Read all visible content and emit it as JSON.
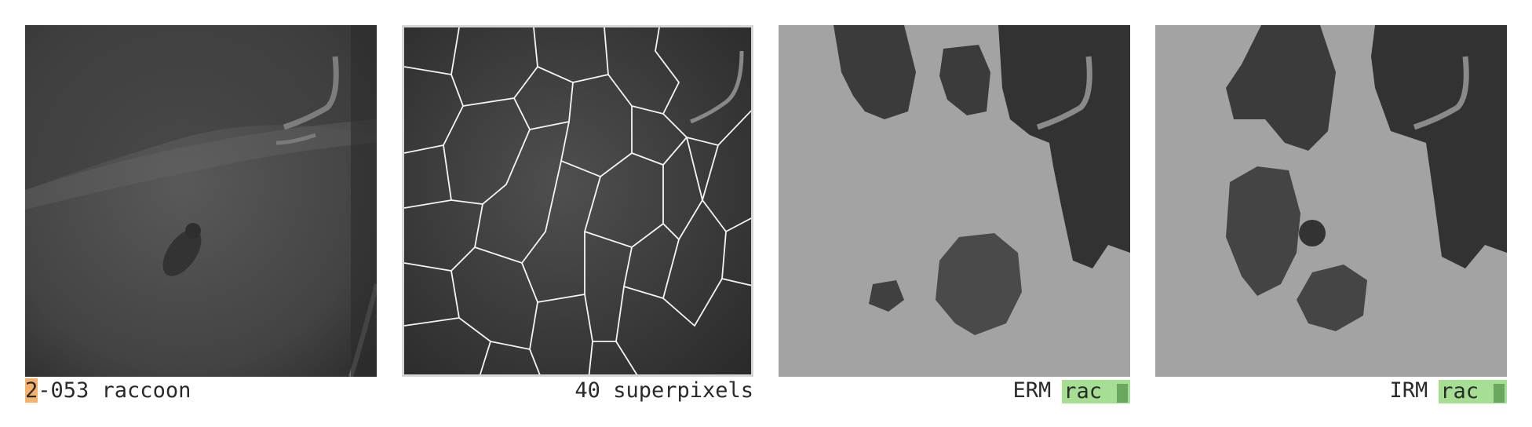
{
  "panels": [
    {
      "caption_index": "2",
      "caption_rest": "-053 raccoon"
    },
    {
      "caption": "40 superpixels"
    },
    {
      "method": "ERM",
      "prediction": "rac"
    },
    {
      "method": "IRM",
      "prediction": "rac"
    }
  ],
  "colors": {
    "highlight": "#f6b26b",
    "prediction_bg": "#a6df94",
    "prediction_bar": "#6aa860"
  }
}
